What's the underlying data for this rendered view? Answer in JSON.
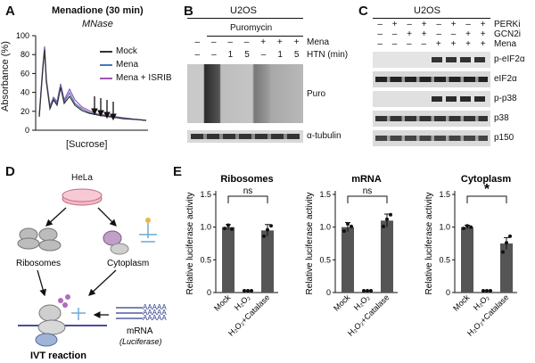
{
  "panels": {
    "A": {
      "letter": "A",
      "title": "Menadione (30 min)",
      "subtitle": "MNase",
      "ylabel": "Absorbance (%)",
      "xlabel": "[Sucrose]",
      "yticks": [
        "100",
        "80",
        "60",
        "40",
        "20",
        "0"
      ],
      "legend": [
        "Mock",
        "Mena",
        "Mena + ISRIB"
      ],
      "colors": {
        "mock": "#333333",
        "mena": "#4a78b8",
        "isrib": "#a052b8"
      }
    },
    "B": {
      "letter": "B",
      "cell": "U2OS",
      "puromycin": "Puromycin",
      "mena_label": "Mena",
      "htn_label": "HTN (min)",
      "row1_signs": [
        "–",
        "–",
        "–",
        "–",
        "+",
        "+",
        "+"
      ],
      "row2_signs": [
        "–",
        "–",
        "1",
        "5",
        "–",
        "1",
        "5"
      ],
      "blots": [
        "Puro",
        "α-tubulin"
      ]
    },
    "C": {
      "letter": "C",
      "cell": "U2OS",
      "row_labels": [
        "PERKi",
        "GCN2i",
        "Mena"
      ],
      "perki": [
        "–",
        "+",
        "–",
        "+",
        "–",
        "+",
        "–",
        "+"
      ],
      "gcn2i": [
        "–",
        "–",
        "+",
        "+",
        "–",
        "–",
        "+",
        "+"
      ],
      "mena": [
        "–",
        "–",
        "–",
        "–",
        "+",
        "+",
        "+",
        "+"
      ],
      "blots": [
        "p-eIF2α",
        "eIF2α",
        "p-p38",
        "p38",
        "p150"
      ]
    },
    "D": {
      "letter": "D",
      "hela": "HeLa",
      "ribosomes": "Ribosomes",
      "cytoplasm": "Cytoplasm",
      "mrna": "mRNA",
      "luciferase": "(Luciferase)",
      "polya": "AAAAA",
      "ivt": "IVT reaction"
    },
    "E": {
      "letter": "E"
    }
  },
  "chart_data": [
    {
      "type": "bar",
      "title": "Ribosomes",
      "ylabel": "Relative luciferase activity",
      "categories": [
        "Mock",
        "H₂O₂",
        "H₂O₂+Catalase"
      ],
      "values": [
        1.0,
        0.0,
        0.95
      ],
      "errors": [
        0.04,
        0.0,
        0.09
      ],
      "points": [
        [
          0.98,
          1.03,
          0.97
        ],
        [
          0.0,
          0.0,
          0.0
        ],
        [
          0.86,
          0.96,
          1.02
        ]
      ],
      "ylim": [
        0,
        1.5
      ],
      "yticks": [
        "0",
        "0.5",
        "1.0",
        "1.5"
      ],
      "annotation": "ns"
    },
    {
      "type": "bar",
      "title": "mRNA",
      "ylabel": "Relative luciferase activity",
      "categories": [
        "Mock",
        "H₂O₂",
        "H₂O₂+Catalase"
      ],
      "values": [
        1.0,
        0.0,
        1.1
      ],
      "errors": [
        0.07,
        0.0,
        0.1
      ],
      "points": [
        [
          0.94,
          1.05,
          1.01
        ],
        [
          0.0,
          0.0,
          0.0
        ],
        [
          1.01,
          1.12,
          1.19
        ]
      ],
      "ylim": [
        0,
        1.5
      ],
      "yticks": [
        "0",
        "0.5",
        "1.0",
        "1.5"
      ],
      "annotation": "ns"
    },
    {
      "type": "bar",
      "title": "Cytoplasm",
      "ylabel": "Relative luciferase activity",
      "categories": [
        "Mock",
        "H₂O₂",
        "H₂O₂+Catalase"
      ],
      "values": [
        1.0,
        0.0,
        0.75
      ],
      "errors": [
        0.03,
        0.0,
        0.09
      ],
      "points": [
        [
          0.98,
          1.02,
          1.0
        ],
        [
          0.0,
          0.0,
          0.0
        ],
        [
          0.62,
          0.76,
          0.86
        ]
      ],
      "ylim": [
        0,
        1.5
      ],
      "yticks": [
        "0",
        "0.5",
        "1.0",
        "1.5"
      ],
      "annotation": "*"
    }
  ]
}
